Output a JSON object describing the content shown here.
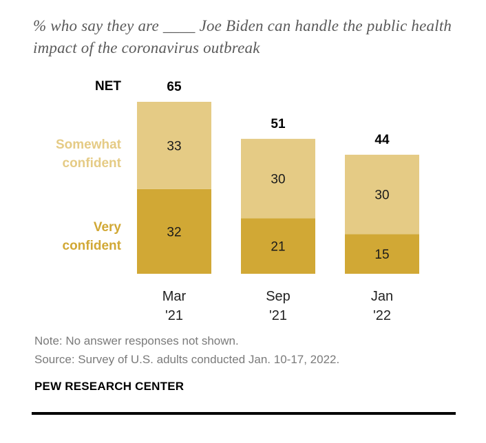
{
  "subtitle": "% who say they are ____ Joe Biden can handle the public health impact of the coronavirus outbreak",
  "chart_data": {
    "type": "bar",
    "stacked": true,
    "categories": [
      [
        "Mar",
        "'21"
      ],
      [
        "Sep",
        "'21"
      ],
      [
        "Jan",
        "'22"
      ]
    ],
    "series": [
      {
        "name": "Very confident",
        "values": [
          32,
          21,
          15
        ],
        "color": "#d1a835"
      },
      {
        "name": "Somewhat confident",
        "values": [
          33,
          30,
          30
        ],
        "color": "#e5cb85"
      }
    ],
    "net": {
      "label": "NET",
      "values": [
        65,
        51,
        44
      ]
    },
    "ylim": [
      0,
      65
    ]
  },
  "labels": {
    "net": "NET",
    "somewhat": [
      "Somewhat",
      "confident"
    ],
    "very": [
      "Very",
      "confident"
    ]
  },
  "note": "Note: No answer responses not shown.",
  "source": "Source: Survey of U.S. adults conducted Jan. 10-17, 2022.",
  "brand": "PEW RESEARCH CENTER"
}
